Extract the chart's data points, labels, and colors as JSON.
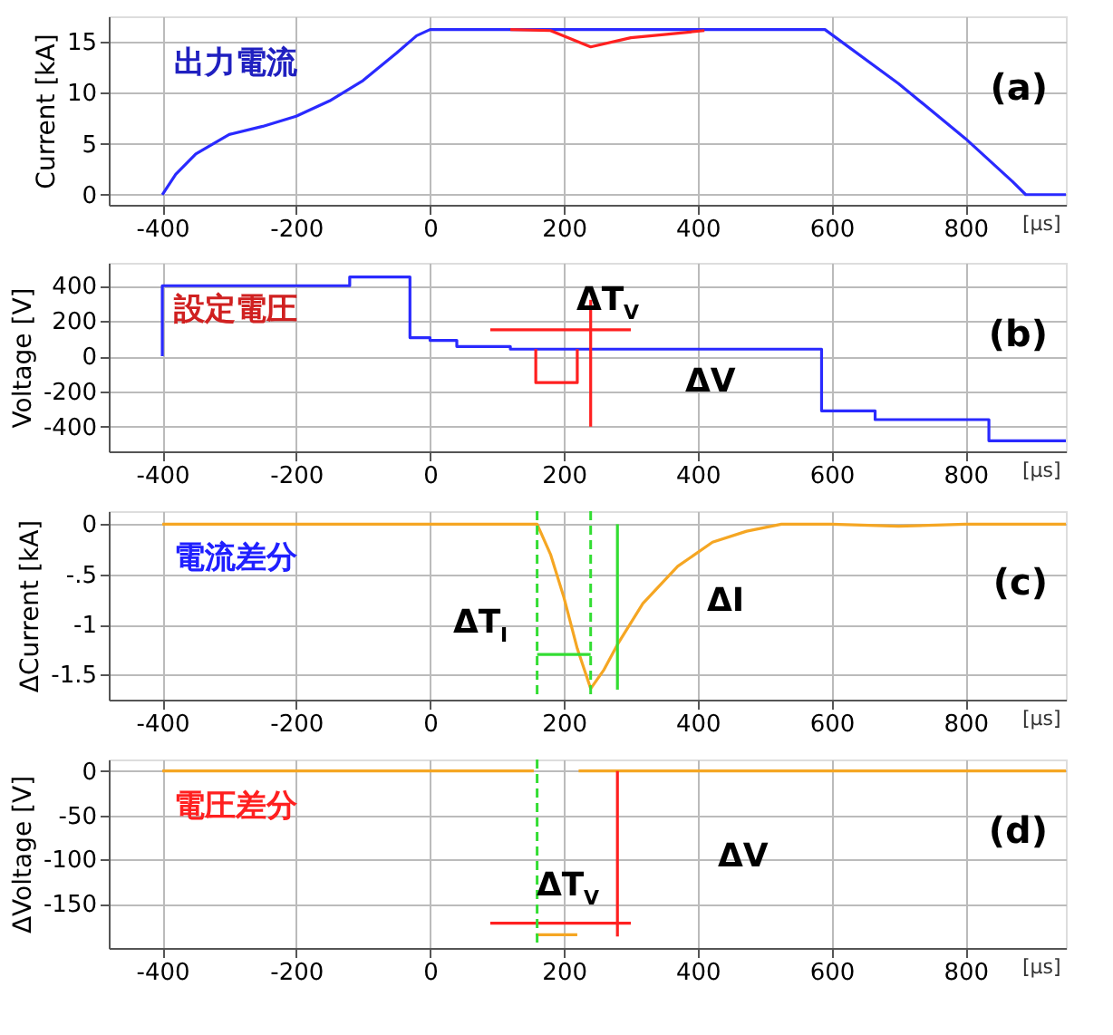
{
  "chart_data": [
    {
      "type": "line",
      "xlabel": "[μs]",
      "ylabel": "Current [kA]",
      "xlim": [
        -480,
        950
      ],
      "xticks": [
        -400,
        -200,
        0,
        200,
        400,
        600,
        800
      ],
      "ylim": [
        -1,
        17.5
      ],
      "yticks": [
        0,
        5,
        10,
        15
      ],
      "grid": true,
      "annotations": [
        "出力電流",
        "(a)"
      ],
      "series": [
        {
          "color": "#2a2aff",
          "x": [
            -400,
            -380,
            -350,
            -300,
            -250,
            -200,
            -150,
            -100,
            -50,
            -20,
            0,
            590,
            700,
            800,
            870,
            890,
            950
          ],
          "values": [
            0,
            2,
            4,
            5.9,
            6.7,
            7.7,
            9.2,
            11.2,
            13.9,
            15.6,
            16.2,
            16.2,
            10.9,
            5.5,
            1.3,
            0,
            0
          ]
        },
        {
          "color": "#ff2020",
          "x": [
            120,
            180,
            240,
            300,
            410
          ],
          "values": [
            16.2,
            16.1,
            14.5,
            15.4,
            16.1
          ]
        }
      ]
    },
    {
      "type": "line",
      "xlabel": "[μs]",
      "ylabel": "Voltage [V]",
      "xlim": [
        -480,
        950
      ],
      "xticks": [
        -400,
        -200,
        0,
        200,
        400,
        600,
        800
      ],
      "ylim": [
        -540,
        530
      ],
      "yticks": [
        -400,
        -200,
        0,
        200,
        400
      ],
      "grid": true,
      "annotations": [
        "設定電圧",
        "(b)",
        "ΔT$_{V}$",
        "ΔV"
      ],
      "series": [
        {
          "type": "step",
          "color": "#2a2aff",
          "x": [
            -400,
            -400,
            -120,
            -30,
            0,
            40,
            120,
            585,
            665,
            835,
            950
          ],
          "values": [
            0,
            400,
            450,
            105,
            90,
            55,
            40,
            -310,
            -360,
            -480,
            -480
          ]
        },
        {
          "color": "#ff2020",
          "x": [
            158,
            158,
            220,
            220
          ],
          "values": [
            40,
            -150,
            -150,
            40
          ]
        },
        {
          "color": "#ff2020",
          "x": [
            90,
            300
          ],
          "values": [
            150,
            150
          ]
        },
        {
          "color": "#ff2020",
          "x": [
            240,
            240
          ],
          "values": [
            320,
            -400
          ]
        }
      ]
    },
    {
      "type": "line",
      "xlabel": "[μs]",
      "ylabel": "ΔCurrent [kA]",
      "xlim": [
        -480,
        950
      ],
      "xticks": [
        -400,
        -200,
        0,
        200,
        400,
        600,
        800
      ],
      "ylim": [
        -1.75,
        0.13
      ],
      "yticks": [
        0,
        {
          "value": -0.5,
          "label": "-.5"
        },
        -1,
        -1.5
      ],
      "grid": true,
      "annotations": [
        "電流差分",
        "(c)",
        "ΔI",
        "ΔT$_{I}$"
      ],
      "ref_lines": [
        {
          "axis": "x",
          "value": 160,
          "color": "#33dd33",
          "line_style": "dashed"
        },
        {
          "axis": "x",
          "value": 240,
          "color": "#33dd33",
          "line_style": "dashed"
        }
      ],
      "series": [
        {
          "color": "#f5a623",
          "x": [
            -400,
            0,
            160,
            180,
            200,
            220,
            240,
            260,
            280,
            318,
            370,
            422,
            473,
            525,
            600,
            700,
            800,
            950
          ],
          "values": [
            0,
            0,
            0,
            -0.3,
            -0.73,
            -1.24,
            -1.64,
            -1.45,
            -1.2,
            -0.79,
            -0.42,
            -0.18,
            -0.07,
            0,
            0,
            -0.02,
            0,
            0
          ]
        },
        {
          "color": "#33dd33",
          "x": [
            280,
            280
          ],
          "values": [
            0,
            -1.65
          ]
        },
        {
          "color": "#33dd33",
          "x": [
            160,
            240
          ],
          "values": [
            -1.3,
            -1.3
          ]
        }
      ]
    },
    {
      "type": "line",
      "xlabel": "[μs]",
      "ylabel": "ΔVoltage [V]",
      "xlim": [
        -480,
        950
      ],
      "xticks": [
        -400,
        -200,
        0,
        200,
        400,
        600,
        800
      ],
      "ylim": [
        -200,
        13
      ],
      "yticks": [
        -150,
        -100,
        -50,
        0
      ],
      "grid": true,
      "annotations": [
        "電圧差分",
        "(d)",
        "ΔV",
        "ΔT$_{V}$"
      ],
      "ref_lines": [
        {
          "axis": "x",
          "value": 160,
          "color": "#33dd33",
          "line_style": "dashed"
        }
      ],
      "series": [
        {
          "color": "#f5a623",
          "x": [
            -400,
            155,
            156,
            158,
            220,
            221,
            222,
            950
          ],
          "values": [
            0,
            0,
            null,
            -185,
            -185,
            null,
            0,
            0
          ]
        },
        {
          "color": "#ff2020",
          "x": [
            280,
            280
          ],
          "values": [
            0,
            -187
          ]
        },
        {
          "color": "#ff2020",
          "x": [
            90,
            300
          ],
          "values": [
            -172,
            -172
          ]
        }
      ]
    }
  ]
}
